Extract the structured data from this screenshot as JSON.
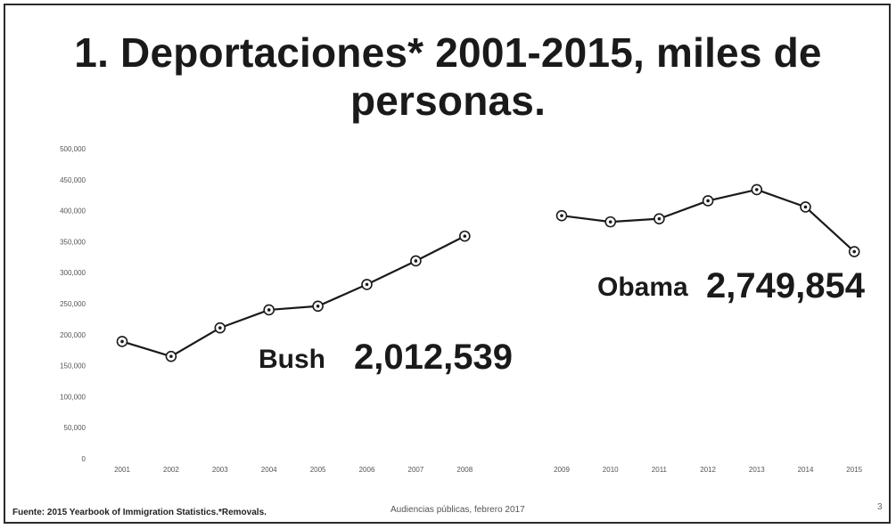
{
  "title_line1": "1. Deportaciones* 2001-2015, miles de",
  "title_line2": "personas.",
  "footer": {
    "source": "Fuente: 2015 Yearbook of Immigration Statistics.*Removals.",
    "center": "Audiencias públicas, febrero 2017",
    "page": "3"
  },
  "annotations": {
    "bush_name": "Bush",
    "bush_total": "2,012,539",
    "obama_name": "Obama",
    "obama_total": "2,749,854"
  },
  "colors": {
    "line": "#1a1a1a",
    "marker_fill": "#ffffff",
    "text": "#1a1a1a"
  },
  "chart_data": {
    "type": "line",
    "title": "1. Deportaciones* 2001-2015, miles de personas.",
    "xlabel": "",
    "ylabel": "",
    "ylim": [
      0,
      500000
    ],
    "yticks": [
      0,
      50000,
      100000,
      150000,
      200000,
      250000,
      300000,
      350000,
      400000,
      450000,
      500000
    ],
    "ytick_labels": [
      "0",
      "50,000",
      "100,000",
      "150,000",
      "200,000",
      "250,000",
      "300,000",
      "350,000",
      "400,000",
      "450,000",
      "500,000"
    ],
    "legend": "none",
    "grid": false,
    "series": [
      {
        "name": "Bush",
        "x": [
          "2001",
          "2002",
          "2003",
          "2004",
          "2005",
          "2006",
          "2007",
          "2008"
        ],
        "values": [
          189000,
          165000,
          211000,
          240000,
          246000,
          281000,
          319000,
          359000
        ]
      },
      {
        "name": "Obama",
        "x": [
          "2009",
          "2010",
          "2011",
          "2012",
          "2013",
          "2014",
          "2015"
        ],
        "values": [
          392000,
          382000,
          387000,
          416000,
          434000,
          406000,
          334000
        ]
      }
    ]
  }
}
